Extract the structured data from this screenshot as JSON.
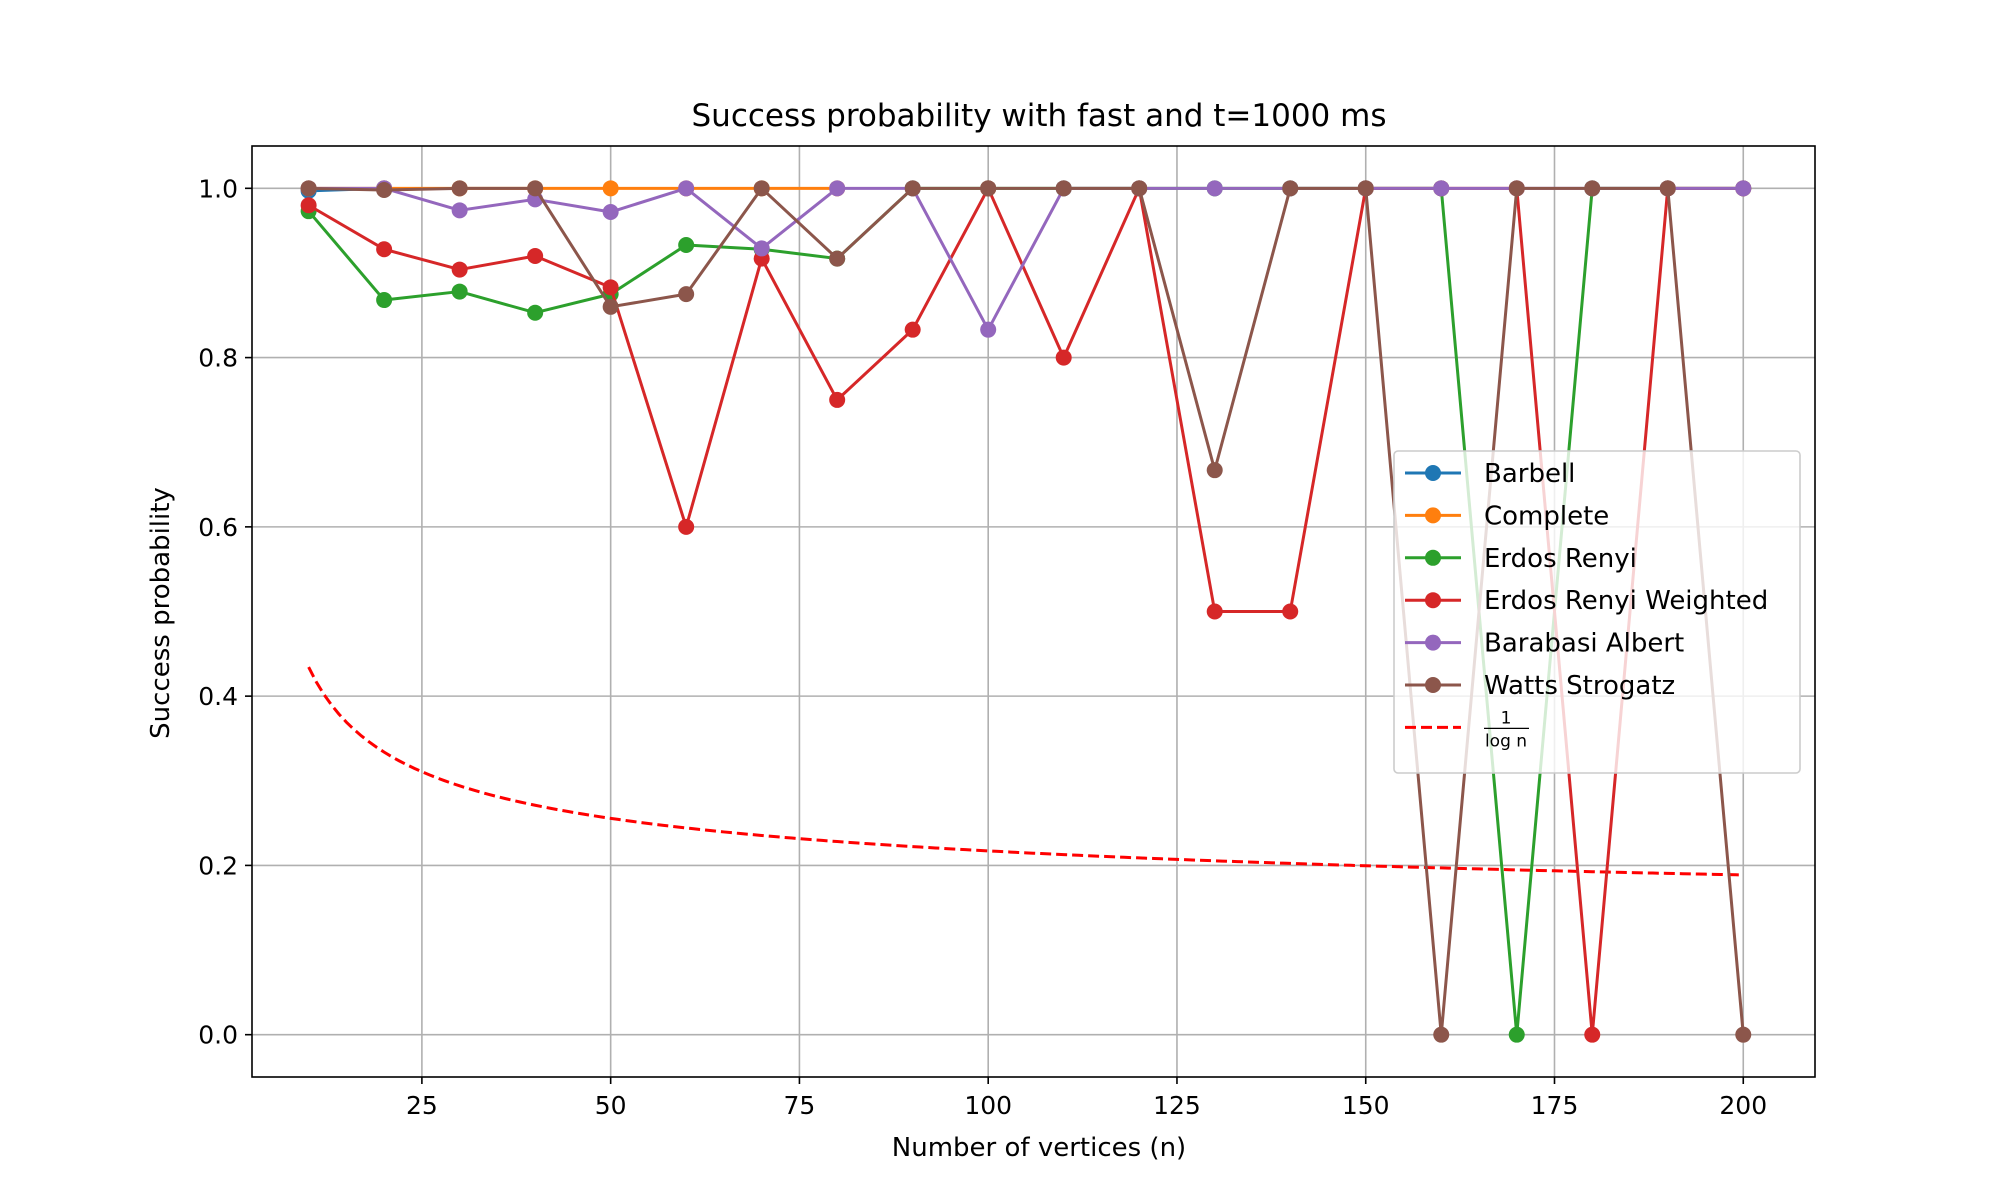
{
  "chart_data": {
    "type": "line",
    "title": "Success probability with fast and t=1000 ms",
    "xlabel": "Number of vertices (n)",
    "ylabel": "Success probability",
    "xlim": [
      2.5,
      209.5
    ],
    "ylim": [
      -0.05,
      1.05
    ],
    "x_ticks": [
      25,
      50,
      75,
      100,
      125,
      150,
      175,
      200
    ],
    "y_ticks": [
      0.0,
      0.2,
      0.4,
      0.6,
      0.8,
      1.0
    ],
    "grid": true,
    "legend_position": "center-right",
    "series": [
      {
        "name": "Barbell",
        "color": "#1f77b4",
        "x": [
          10,
          20
        ],
        "y": [
          0.997,
          1.0
        ]
      },
      {
        "name": "Complete",
        "color": "#ff7f0e",
        "x": [
          10,
          20,
          30,
          40,
          50,
          60,
          70,
          80
        ],
        "y": [
          1.0,
          1.0,
          1.0,
          1.0,
          1.0,
          1.0,
          1.0,
          1.0
        ]
      },
      {
        "name": "Erdos Renyi",
        "color": "#2ca02c",
        "x": [
          10,
          20,
          30,
          40,
          50,
          60,
          70,
          80,
          90,
          100,
          110,
          120,
          130,
          140,
          150,
          160,
          170,
          180,
          190,
          200
        ],
        "y": [
          0.973,
          0.868,
          0.878,
          0.853,
          0.875,
          0.933,
          0.928,
          0.917,
          1.0,
          1.0,
          1.0,
          1.0,
          1.0,
          1.0,
          1.0,
          1.0,
          0.0,
          1.0,
          1.0,
          1.0
        ]
      },
      {
        "name": "Erdos Renyi Weighted",
        "color": "#d62728",
        "x": [
          10,
          20,
          30,
          40,
          50,
          60,
          70,
          80,
          90,
          100,
          110,
          120,
          130,
          140,
          150,
          160,
          170,
          180,
          190,
          200
        ],
        "y": [
          0.98,
          0.928,
          0.904,
          0.92,
          0.883,
          0.6,
          0.917,
          0.75,
          0.833,
          1.0,
          0.8,
          1.0,
          0.5,
          0.5,
          1.0,
          1.0,
          1.0,
          0.0,
          1.0,
          1.0
        ]
      },
      {
        "name": "Barabasi Albert",
        "color": "#9467bd",
        "x": [
          10,
          20,
          30,
          40,
          50,
          60,
          70,
          80,
          90,
          100,
          110,
          120,
          130,
          140,
          150,
          160,
          170,
          180,
          190,
          200
        ],
        "y": [
          1.0,
          1.0,
          0.974,
          0.987,
          0.972,
          1.0,
          0.929,
          1.0,
          1.0,
          0.833,
          1.0,
          1.0,
          1.0,
          1.0,
          1.0,
          1.0,
          1.0,
          1.0,
          1.0,
          1.0
        ]
      },
      {
        "name": "Watts Strogatz",
        "color": "#8c564b",
        "x": [
          10,
          20,
          30,
          40,
          50,
          60,
          70,
          80,
          90,
          100,
          110,
          120,
          130,
          140,
          150,
          160,
          170,
          180,
          190,
          200
        ],
        "y": [
          1.0,
          0.998,
          1.0,
          1.0,
          0.86,
          0.875,
          1.0,
          0.917,
          1.0,
          1.0,
          1.0,
          1.0,
          0.667,
          1.0,
          1.0,
          0.0,
          1.0,
          1.0,
          1.0,
          0.0
        ]
      }
    ],
    "reference_curve": {
      "name_numerator": "1",
      "name_denominator": "log n",
      "color": "#ff0000",
      "style": "dashed",
      "function": "1/ln(n)",
      "x_range": [
        10,
        200
      ]
    }
  }
}
